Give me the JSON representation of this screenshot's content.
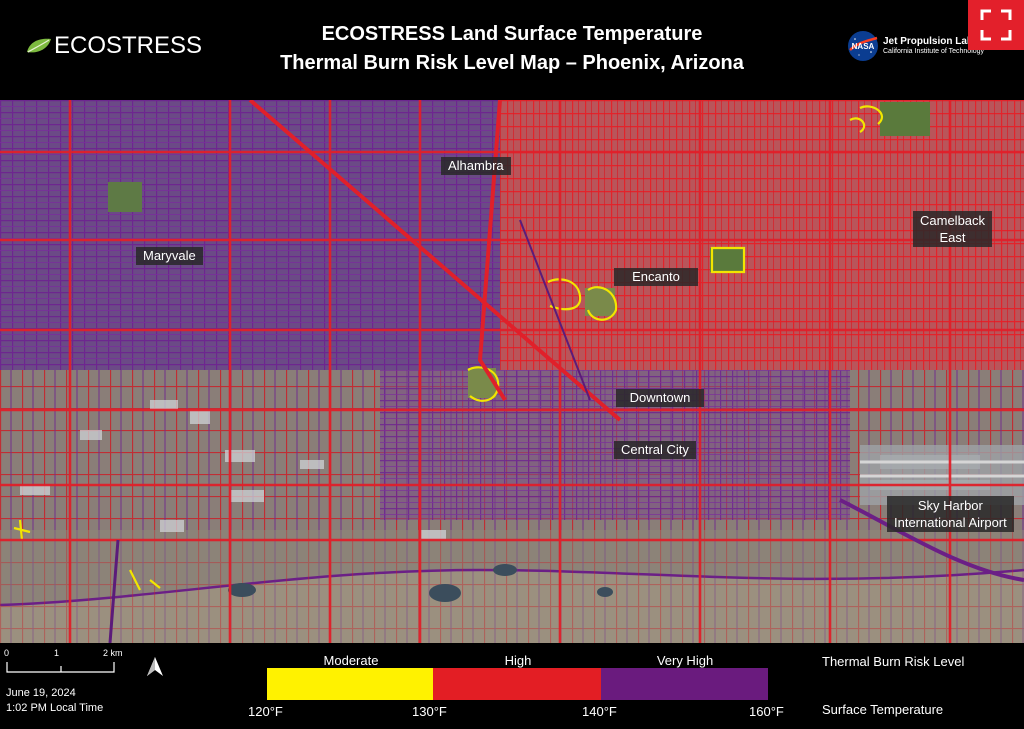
{
  "header": {
    "logo_text": "ECOSTRESS",
    "title_line1": "ECOSTRESS Land Surface Temperature",
    "title_line2": "Thermal Burn Risk Level Map – Phoenix, Arizona",
    "jpl_name": "Jet Propulsion Lab",
    "jpl_sub": "California Institute of Technology",
    "nasa_text": "NASA"
  },
  "map": {
    "places": [
      {
        "id": "alhambra",
        "text": "Alhambra"
      },
      {
        "id": "maryvale",
        "text": "Maryvale"
      },
      {
        "id": "camelback",
        "text": "Camelback\nEast"
      },
      {
        "id": "encanto",
        "text": "Encanto"
      },
      {
        "id": "downtown",
        "text": "Downtown"
      },
      {
        "id": "central-city",
        "text": "Central City"
      },
      {
        "id": "sky-harbor",
        "text": "Sky Harbor\nInternational Airport"
      }
    ],
    "risk_colors": {
      "moderate": "#f5e400",
      "high": "#e21f26",
      "very_high": "#6c1f8c"
    }
  },
  "footer": {
    "scale": {
      "ticks": [
        "0",
        "1",
        "2 km"
      ]
    },
    "date": "June 19, 2024",
    "time": "1:02 PM Local Time",
    "legend": {
      "categories": [
        {
          "label": "Moderate",
          "color": "#fff200"
        },
        {
          "label": "High",
          "color": "#e31e24"
        },
        {
          "label": "Very High",
          "color": "#6a1b7e"
        }
      ],
      "temps": [
        "120°F",
        "130°F",
        "140°F",
        "160°F"
      ],
      "title_risk": "Thermal Burn Risk Level",
      "title_temp": "Surface Temperature"
    }
  }
}
